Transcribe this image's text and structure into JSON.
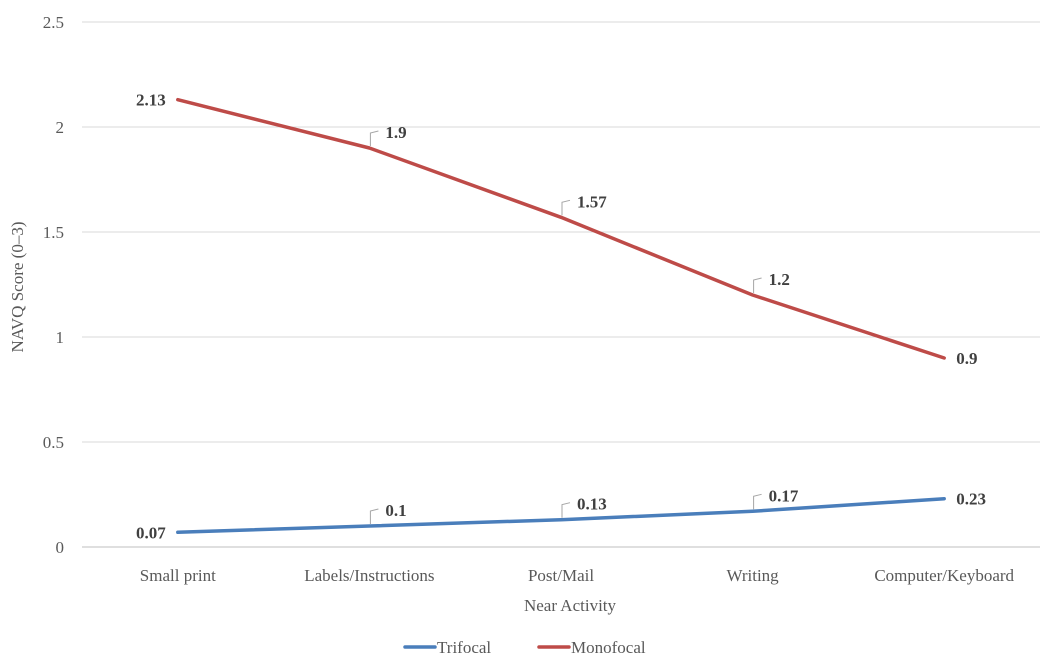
{
  "chart_data": {
    "type": "line",
    "title": "",
    "xlabel": "Near Activity",
    "ylabel": "NAVQ Score (0–3)",
    "categories": [
      "Small print",
      "Labels/Instructions",
      "Post/Mail",
      "Writing",
      "Computer/Keyboard"
    ],
    "y_ticks": [
      0,
      0.5,
      1,
      1.5,
      2,
      2.5
    ],
    "y_tick_labels": [
      "0",
      "0.5",
      "1",
      "1.5",
      "2",
      "2.5"
    ],
    "ylim": [
      0,
      2.5
    ],
    "grid": "horizontal",
    "legend_position": "bottom",
    "series": [
      {
        "name": "Trifocal",
        "color": "#4a7ebb",
        "values": [
          0.07,
          0.1,
          0.13,
          0.17,
          0.23
        ],
        "labels": [
          "0.07",
          "0.1",
          "0.13",
          "0.17",
          "0.23"
        ]
      },
      {
        "name": "Monofocal",
        "color": "#be4b48",
        "values": [
          2.13,
          1.9,
          1.57,
          1.2,
          0.9
        ],
        "labels": [
          "2.13",
          "1.9",
          "1.57",
          "1.2",
          "0.9"
        ]
      }
    ]
  }
}
